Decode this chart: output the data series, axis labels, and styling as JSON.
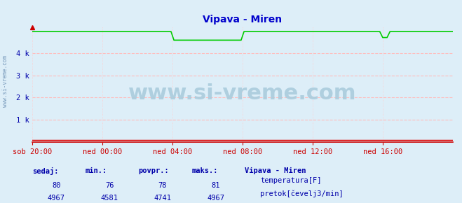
{
  "title": "Vipava - Miren",
  "bg_color": "#ddeef8",
  "xlim": [
    0,
    1440
  ],
  "ylim": [
    0,
    5200
  ],
  "yticks": [
    1000,
    2000,
    3000,
    4000
  ],
  "ytick_labels": [
    "1 k",
    "2 k",
    "3 k",
    "4 k"
  ],
  "xtick_positions": [
    0,
    240,
    480,
    720,
    960,
    1200
  ],
  "xtick_labels": [
    "sob 20:00",
    "ned 00:00",
    "ned 04:00",
    "ned 08:00",
    "ned 12:00",
    "ned 16:00"
  ],
  "title_color": "#0000cc",
  "title_fontsize": 10,
  "tick_color": "#0000aa",
  "tick_fontsize": 7.5,
  "grid_h_color": "#ffbbbb",
  "grid_v_color": "#ffcccc",
  "watermark": "www.si-vreme.com",
  "watermark_color": "#aaccdd",
  "watermark_fontsize": 22,
  "axis_color": "#cc0000",
  "temp_color": "#dd0000",
  "flow_color": "#00cc00",
  "temp_value": 80,
  "temp_min": 76,
  "temp_avg": 78,
  "temp_max": 81,
  "flow_value": 4967,
  "flow_min": 4581,
  "flow_avg": 4741,
  "flow_max": 4967,
  "sidebar_text_color": "#0000aa",
  "legend_title": "Vipava - Miren",
  "legend_label1": "temperatura[F]",
  "legend_label2": "pretok[čevelj3/min]",
  "flow_high": 4967,
  "flow_low": 4581,
  "flow_dip_start": 475,
  "flow_dip_end": 485,
  "flow_recover_start": 715,
  "flow_recover_end": 725,
  "flow_dip2_start": 1190,
  "flow_dip2_end": 1200,
  "flow_recover2_start": 1215,
  "flow_recover2_end": 1225,
  "flow_low2": 4700
}
